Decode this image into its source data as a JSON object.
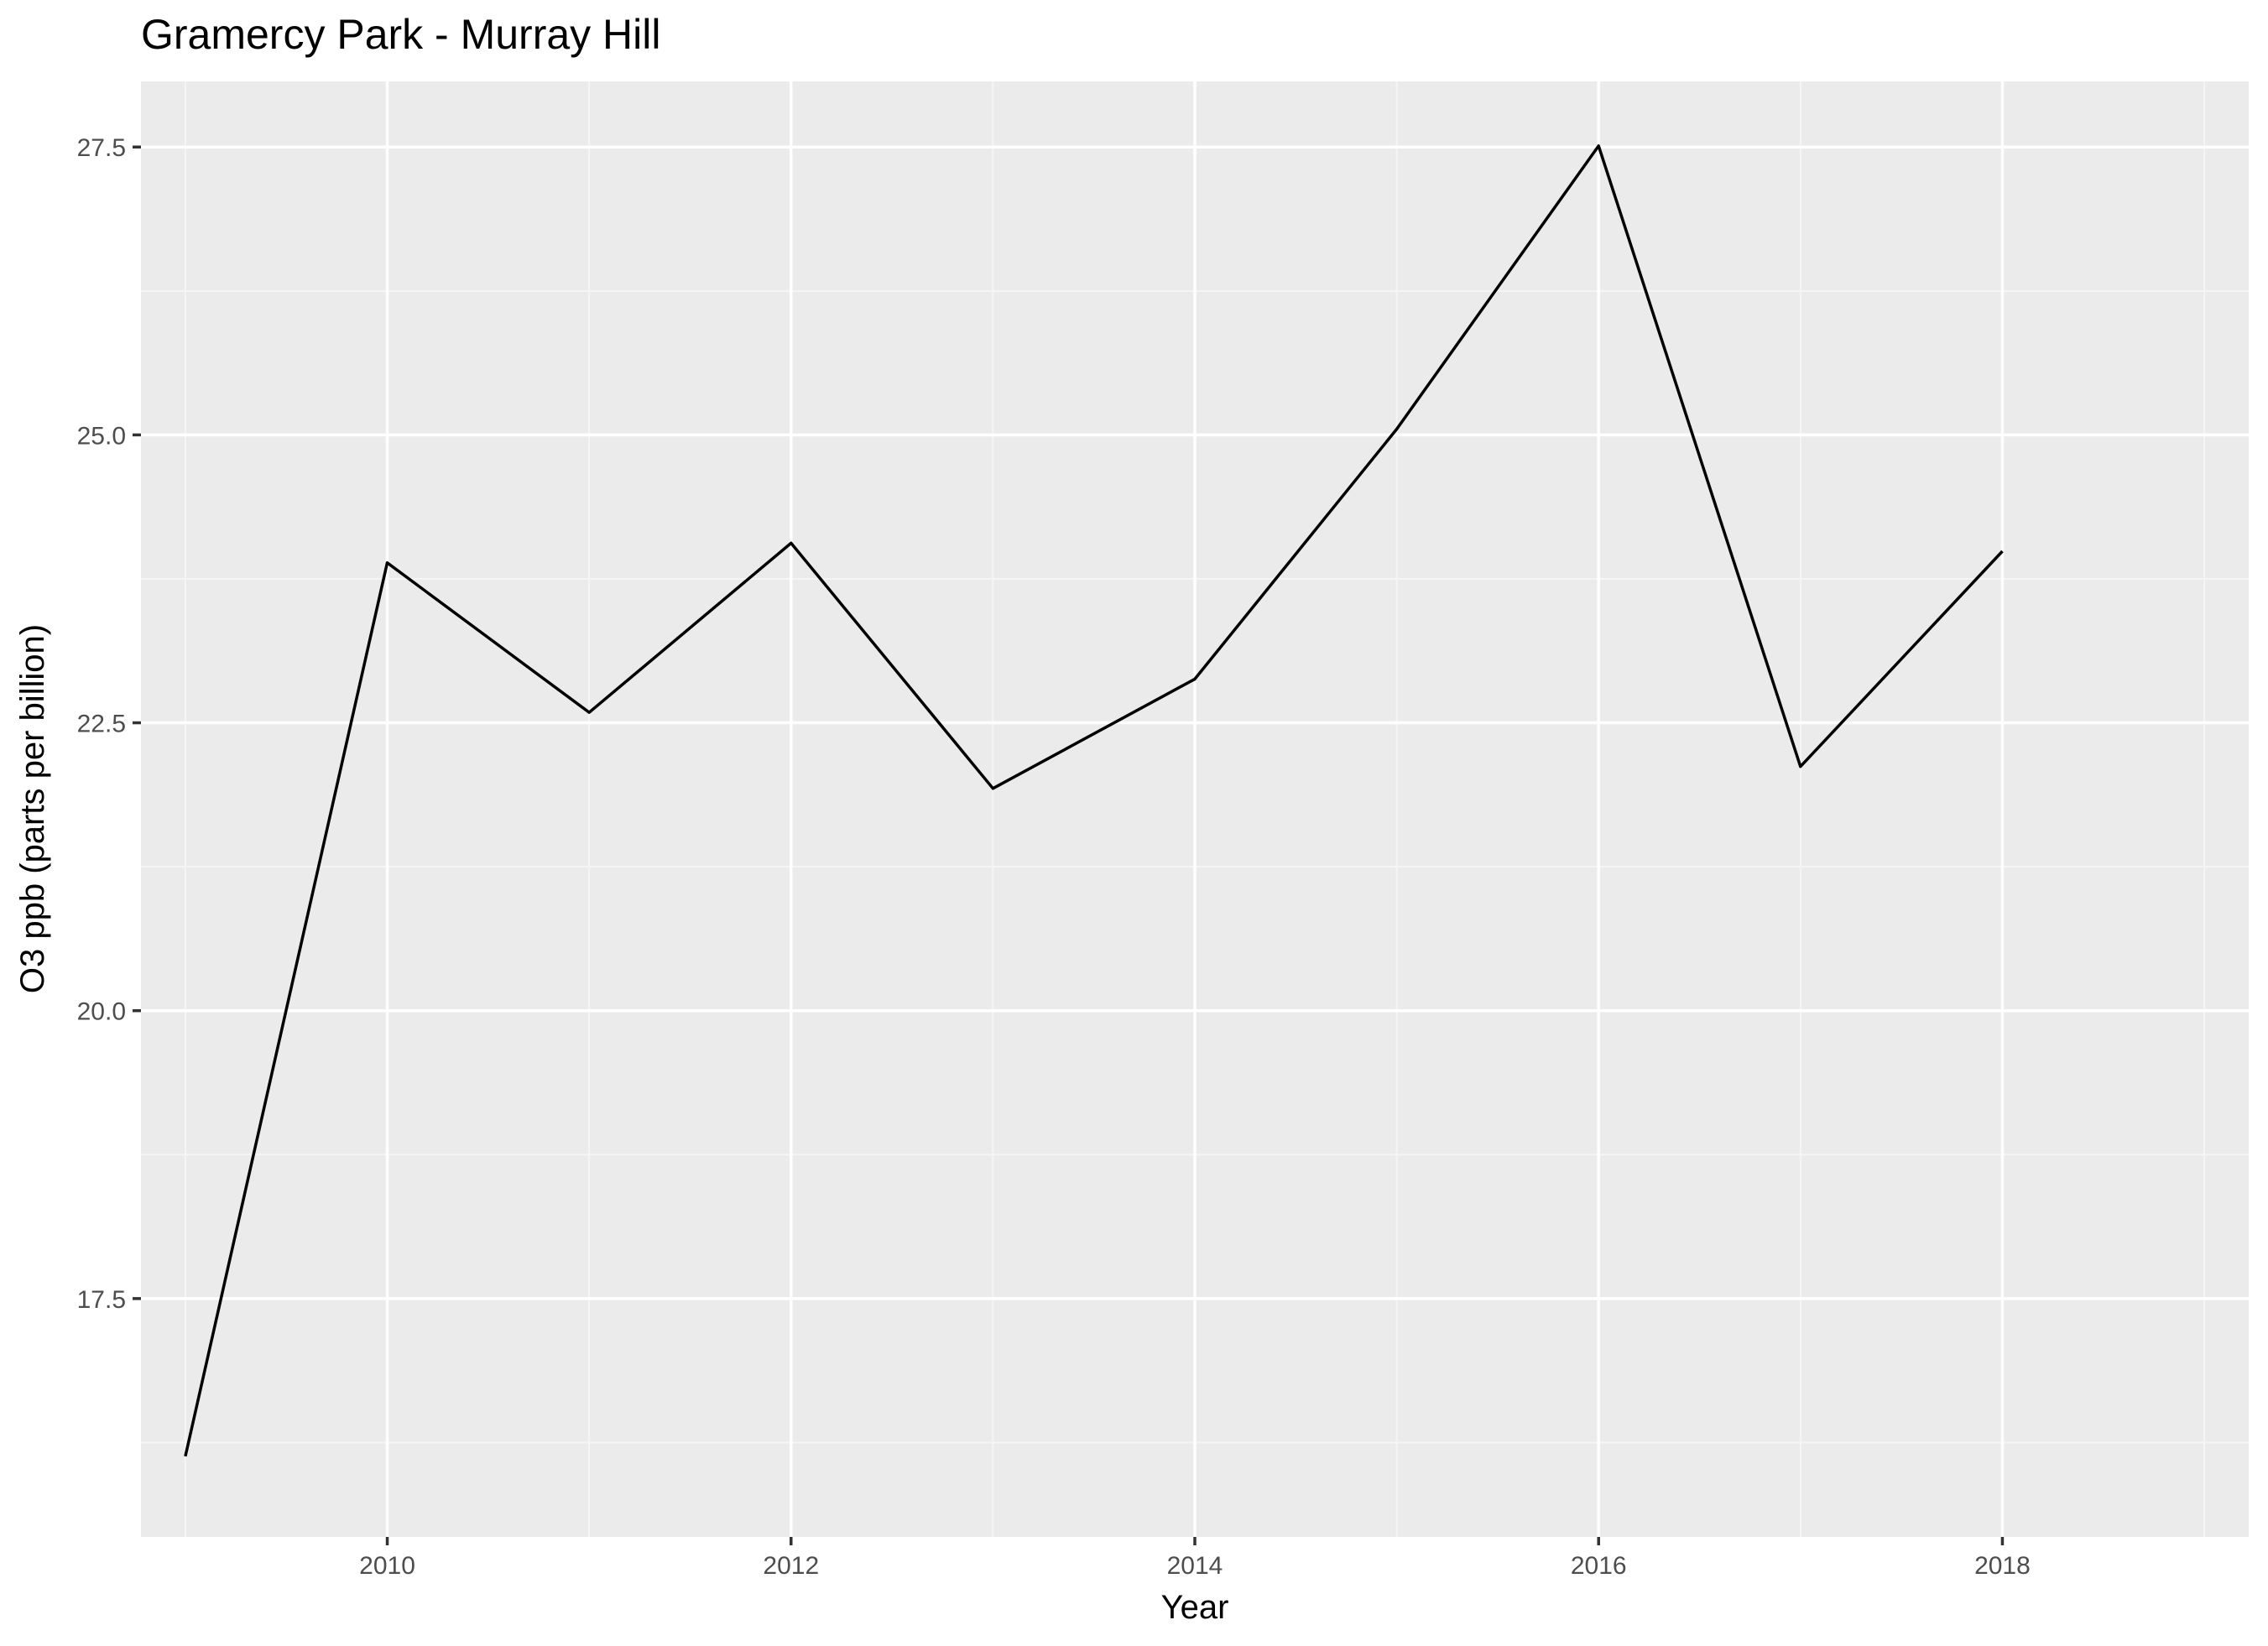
{
  "chart_data": {
    "type": "line",
    "title": "Gramercy Park - Murray Hill",
    "xlabel": "Year",
    "ylabel": "O3 ppb (parts per billion)",
    "x": [
      2009,
      2010,
      2011,
      2012,
      2013,
      2014,
      2015,
      2016,
      2017,
      2018
    ],
    "series": [
      {
        "values": [
          16.13,
          23.89,
          22.59,
          24.06,
          21.93,
          22.88,
          25.05,
          27.51,
          22.12,
          23.99
        ]
      }
    ],
    "xlim": [
      2008.78,
      2019.22
    ],
    "ylim": [
      15.43,
      28.07
    ],
    "x_ticks": [
      2010,
      2012,
      2014,
      2016,
      2018
    ],
    "x_tick_labels": [
      "2010",
      "2012",
      "2014",
      "2016",
      "2018"
    ],
    "y_ticks": [
      17.5,
      20.0,
      22.5,
      25.0,
      27.5
    ],
    "y_tick_labels": [
      "17.5",
      "20.0",
      "22.5",
      "25.0",
      "27.5"
    ],
    "grid": true,
    "legend": "none",
    "colors": {
      "panel_background": "#ebebeb",
      "grid_major": "#ffffff",
      "grid_minor": "#f5f5f5",
      "line": "#000000",
      "tick_mark": "#333333",
      "tick_text": "#4d4d4d"
    }
  }
}
